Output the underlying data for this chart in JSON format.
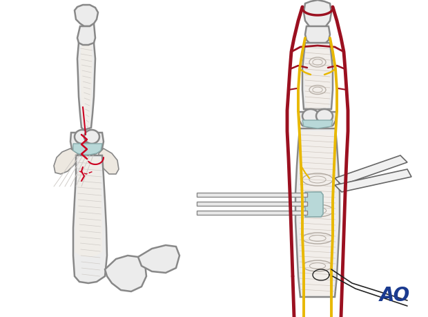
{
  "background_color": "#ffffff",
  "ao_text": "AO",
  "ao_color": "#1a3a8f",
  "ao_fontsize": 20,
  "bone_fill": "#ececec",
  "bone_fill2": "#e0e0e0",
  "bone_edge": "#888888",
  "bone_lw": 1.8,
  "dark_red": "#9b1020",
  "bright_red": "#cc0020",
  "yellow": "#e8b800",
  "light_blue": "#b8d8d8",
  "cream": "#ede8e0",
  "ligament": "#d8d2c8",
  "stripe": "#c8c0b8",
  "retractor_fill": "#e8e8e8",
  "retractor_edge": "#888888",
  "black": "#222222",
  "fig_width": 6.2,
  "fig_height": 4.59,
  "dpi": 100
}
